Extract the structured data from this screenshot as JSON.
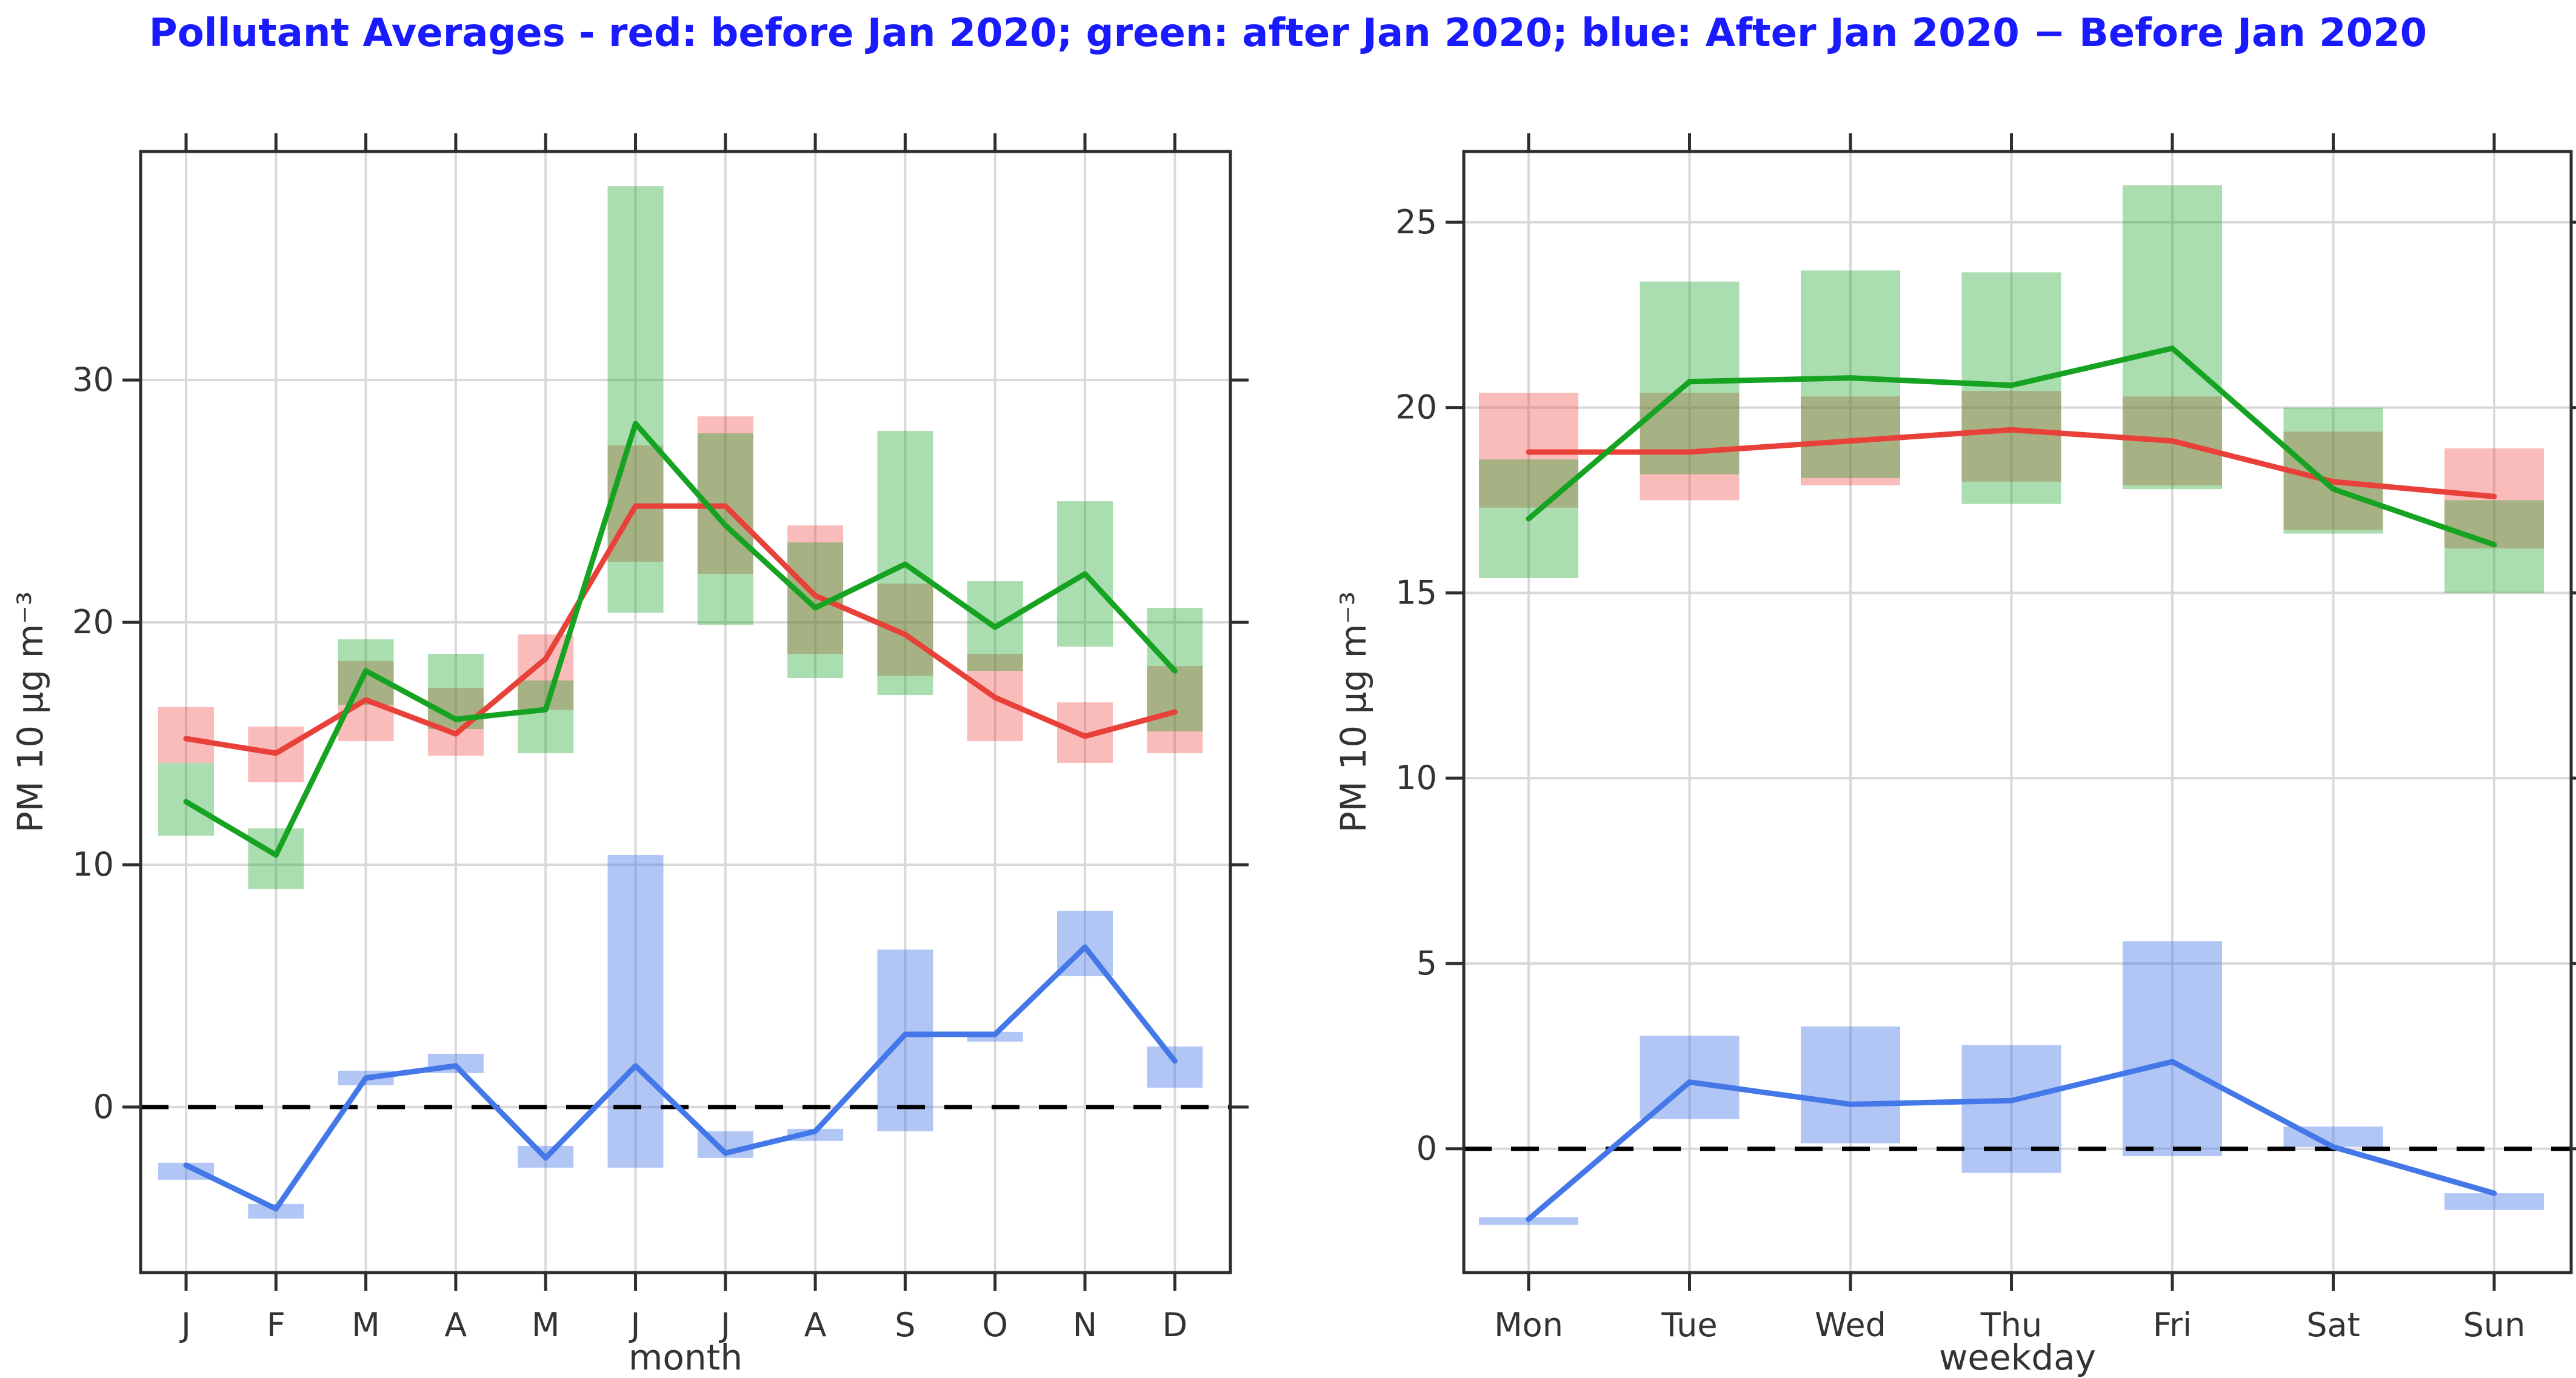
{
  "title": {
    "text": "Pollutant Averages - red: before Jan 2020; green: after Jan 2020; blue: After Jan 2020 − Before Jan 2020",
    "color": "#1a1aff"
  },
  "colors": {
    "red_line": "#e8413a",
    "red_band": "rgba(238,64,56,0.35)",
    "green_line": "#16a322",
    "green_band": "rgba(24,163,40,0.37)",
    "blue_line": "#4478e8",
    "blue_band": "rgba(68,120,232,0.42)",
    "grid": "#d9d9d9",
    "axis": "#2e2e2e",
    "text": "#333333",
    "zero_line": "#000000"
  },
  "chart_data": [
    {
      "panel": "monthly",
      "type": "line",
      "xlabel": "month",
      "ylabel": "PM 10 μg m⁻³",
      "categories": [
        "J",
        "F",
        "M",
        "A",
        "M",
        "J",
        "J",
        "A",
        "S",
        "O",
        "N",
        "D"
      ],
      "yticks": [
        0,
        10,
        20,
        30
      ],
      "ytick_labels": [
        "0",
        "10",
        "20",
        "30"
      ],
      "ylim": [
        -6.83,
        39.43
      ],
      "grid": true,
      "zero_dashed_line": true,
      "legend_position": "none",
      "series": [
        {
          "name": "before Jan 2020",
          "color_key": "red",
          "values": [
            15.2,
            14.6,
            16.8,
            15.4,
            18.5,
            24.8,
            24.8,
            21.1,
            19.5,
            16.9,
            15.3,
            16.3
          ],
          "band": [
            [
              14.2,
              16.5
            ],
            [
              13.4,
              15.7
            ],
            [
              15.1,
              18.4
            ],
            [
              14.5,
              17.3
            ],
            [
              16.4,
              19.5
            ],
            [
              22.5,
              27.3
            ],
            [
              22.0,
              28.5
            ],
            [
              18.7,
              24.0
            ],
            [
              17.8,
              21.6
            ],
            [
              15.1,
              18.7
            ],
            [
              14.2,
              16.7
            ],
            [
              14.6,
              18.2
            ]
          ]
        },
        {
          "name": "after Jan 2020",
          "color_key": "green",
          "values": [
            12.6,
            10.4,
            18.0,
            16.0,
            16.4,
            28.2,
            24.0,
            20.6,
            22.4,
            19.8,
            22.0,
            18.0
          ],
          "band": [
            [
              11.2,
              14.2
            ],
            [
              9.0,
              11.5
            ],
            [
              16.6,
              19.3
            ],
            [
              15.6,
              18.7
            ],
            [
              14.6,
              17.6
            ],
            [
              20.4,
              38.0
            ],
            [
              19.9,
              27.8
            ],
            [
              17.7,
              23.3
            ],
            [
              17.0,
              27.9
            ],
            [
              18.0,
              21.7
            ],
            [
              19.0,
              25.0
            ],
            [
              15.5,
              20.6
            ]
          ]
        },
        {
          "name": "After Jan 2020 − Before Jan 2020",
          "color_key": "blue",
          "values": [
            -2.4,
            -4.2,
            1.2,
            1.7,
            -2.1,
            1.7,
            -1.9,
            -1.0,
            3.0,
            3.0,
            6.6,
            1.9
          ],
          "band": [
            [
              -3.0,
              -2.3
            ],
            [
              -4.6,
              -4.0
            ],
            [
              0.9,
              1.5
            ],
            [
              1.4,
              2.2
            ],
            [
              -2.5,
              -1.6
            ],
            [
              -2.5,
              10.4
            ],
            [
              -2.1,
              -1.0
            ],
            [
              -1.4,
              -0.9
            ],
            [
              -1.0,
              6.5
            ],
            [
              2.7,
              3.1
            ],
            [
              5.4,
              8.1
            ],
            [
              0.8,
              2.5
            ]
          ]
        }
      ]
    },
    {
      "panel": "weekday",
      "type": "line",
      "xlabel": "weekday",
      "ylabel": "PM 10 μg m⁻³",
      "categories": [
        "Mon",
        "Tue",
        "Wed",
        "Thu",
        "Fri",
        "Sat",
        "Sun"
      ],
      "yticks": [
        0,
        5,
        10,
        15,
        20,
        25
      ],
      "ytick_labels": [
        "0",
        "5",
        "10",
        "15",
        "20",
        "25"
      ],
      "ylim": [
        -3.34,
        26.91
      ],
      "grid": true,
      "zero_dashed_line": true,
      "legend_position": "none",
      "series": [
        {
          "name": "before Jan 2020",
          "color_key": "red",
          "values": [
            18.8,
            18.8,
            19.1,
            19.4,
            19.1,
            18.0,
            17.6
          ],
          "band": [
            [
              17.3,
              20.4
            ],
            [
              17.5,
              20.4
            ],
            [
              17.9,
              20.3
            ],
            [
              18.0,
              20.45
            ],
            [
              17.9,
              20.3
            ],
            [
              16.7,
              19.35
            ],
            [
              16.2,
              18.9
            ]
          ]
        },
        {
          "name": "after Jan 2020",
          "color_key": "green",
          "values": [
            17.0,
            20.7,
            20.8,
            20.6,
            21.6,
            17.8,
            16.3
          ],
          "band": [
            [
              15.4,
              18.6
            ],
            [
              18.2,
              23.4
            ],
            [
              18.1,
              23.7
            ],
            [
              17.4,
              23.65
            ],
            [
              17.8,
              26.0
            ],
            [
              16.6,
              20.0
            ],
            [
              15.0,
              17.5
            ]
          ]
        },
        {
          "name": "After Jan 2020 − Before Jan 2020",
          "color_key": "blue",
          "values": [
            -1.9,
            1.8,
            1.2,
            1.3,
            2.35,
            0.05,
            -1.2
          ],
          "band": [
            [
              -2.05,
              -1.85
            ],
            [
              0.8,
              3.05
            ],
            [
              0.15,
              3.3
            ],
            [
              -0.65,
              2.8
            ],
            [
              -0.2,
              5.6
            ],
            [
              0.05,
              0.6
            ],
            [
              -1.65,
              -1.2
            ]
          ]
        }
      ]
    }
  ]
}
